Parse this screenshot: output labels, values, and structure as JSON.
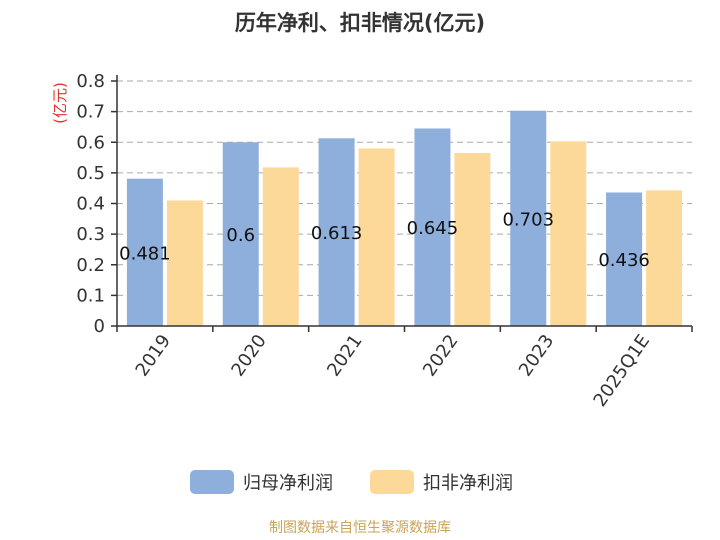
{
  "chart_data": {
    "type": "bar",
    "title": "历年净利、扣非情况(亿元)",
    "ylabel": "(亿元)",
    "xlabel": "",
    "ylim": [
      0,
      0.8
    ],
    "yticks": [
      "0",
      "0.1",
      "0.2",
      "0.3",
      "0.4",
      "0.5",
      "0.6",
      "0.7",
      "0.8"
    ],
    "grid": true,
    "legend_position": "bottom",
    "categories": [
      "2019",
      "2020",
      "2021",
      "2022",
      "2023",
      "2025Q1E"
    ],
    "series": [
      {
        "name": "归母净利润",
        "color": "#8eaedc",
        "values": [
          0.481,
          0.6,
          0.613,
          0.645,
          0.703,
          0.436
        ],
        "labels": [
          "0.481",
          "0.6",
          "0.613",
          "0.645",
          "0.703",
          "0.436"
        ]
      },
      {
        "name": "扣非净利润",
        "color": "#fdd999",
        "values": [
          0.41,
          0.518,
          0.58,
          0.565,
          0.603,
          0.443
        ]
      }
    ]
  },
  "footer": {
    "source": "制图数据来自恒生聚源数据库"
  }
}
